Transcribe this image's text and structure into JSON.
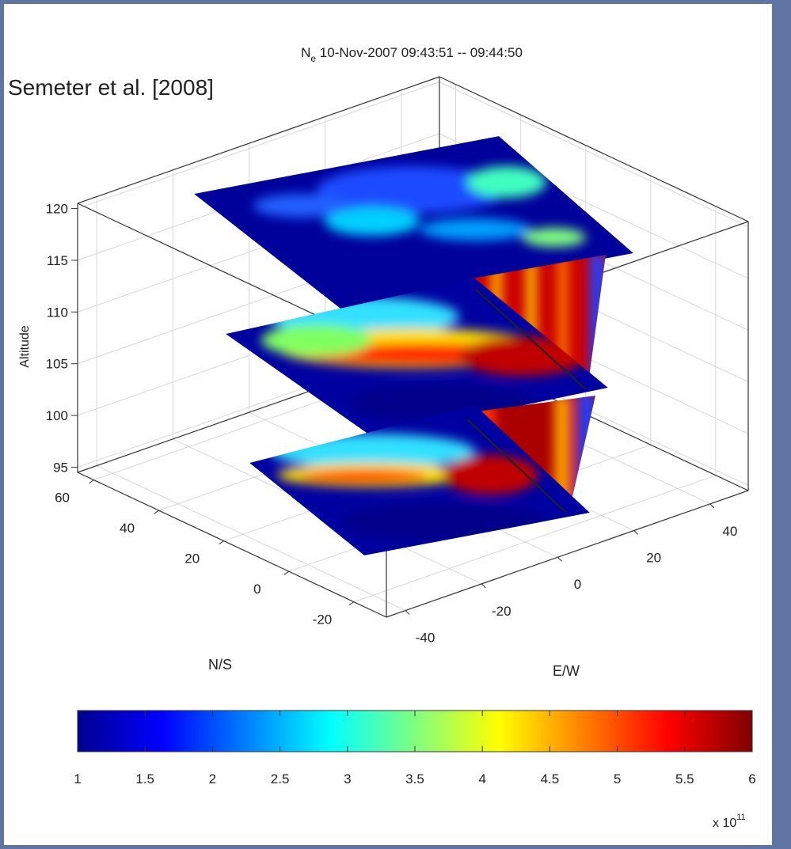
{
  "chart_data": {
    "type": "slice3d",
    "title_symbol": "N",
    "title_subscript": "e",
    "title_text": "10-Nov-2007 09:43:51 -- 09:44:50",
    "annotation": "Semeter et al. [2008]",
    "zlabel": "Altitude",
    "zlim": [
      94.5,
      120.5
    ],
    "zticks": [
      95,
      100,
      105,
      110,
      115,
      120
    ],
    "nslabel": "N/S",
    "nslim": [
      -30,
      65
    ],
    "nsticks": [
      -20,
      0,
      20,
      40,
      60
    ],
    "ewlabel": "E/W",
    "ewlim": [
      -45,
      50
    ],
    "ewticks": [
      -40,
      -20,
      0,
      20,
      40
    ],
    "grid": true,
    "colorbar": {
      "colormap": "jet",
      "clim": [
        1,
        6
      ],
      "ticks": [
        1,
        1.5,
        2,
        2.5,
        3,
        3.5,
        4,
        4.5,
        5,
        5.5,
        6
      ],
      "exponent_base": "x 10",
      "exponent": "11"
    }
  }
}
